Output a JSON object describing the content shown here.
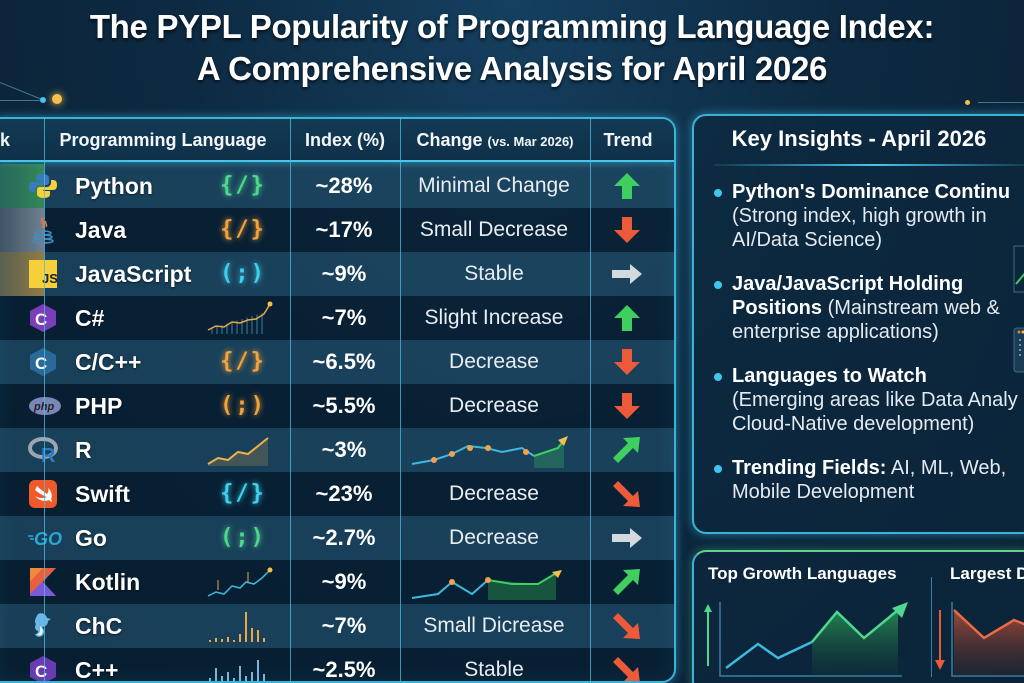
{
  "header": {
    "title_line1": "The PYPL Popularity of Programming Language Index:",
    "title_line2": "A Comprehensive Analysis for April 2026"
  },
  "table": {
    "columns": {
      "rank": "k",
      "language": "Programming Language",
      "index": "Index (%)",
      "change": "Change",
      "change_sub": "(vs. Mar 2026)",
      "trend": "Trend"
    },
    "rows": [
      {
        "language": "Python",
        "icon": "python-logo-icon",
        "glyph": "{/}",
        "glyph_color": "#4fd68f",
        "index": "~28%",
        "change": "Minimal Change",
        "trend": "up",
        "highlight": "#3a9a5a"
      },
      {
        "language": "Java",
        "icon": "java-logo-icon",
        "glyph": "{/}",
        "glyph_color": "#f2a23a",
        "index": "~17%",
        "change": "Small Decrease",
        "trend": "down",
        "highlight": "#8a9aa8"
      },
      {
        "language": "JavaScript",
        "icon": "javascript-logo-icon",
        "glyph": "(;)",
        "glyph_color": "#3fd0ee",
        "index": "~9%",
        "change": "Stable",
        "trend": "right",
        "highlight": "#b08a40"
      },
      {
        "language": "C#",
        "icon": "csharp-logo-icon",
        "glyph": "",
        "glyph_color": "",
        "index": "~7%",
        "change": "Slight Increase",
        "trend": "up"
      },
      {
        "language": "C/C++",
        "icon": "c-logo-icon",
        "glyph": "{/}",
        "glyph_color": "#f2a23a",
        "index": "~6.5%",
        "change": "Decrease",
        "trend": "down"
      },
      {
        "language": "PHP",
        "icon": "php-logo-icon",
        "glyph": "(;)",
        "glyph_color": "#f2a23a",
        "index": "~5.5%",
        "change": "Decrease",
        "trend": "down"
      },
      {
        "language": "R",
        "icon": "r-logo-icon",
        "glyph": "",
        "glyph_color": "",
        "index": "~3%",
        "change": "",
        "trend": "up-right"
      },
      {
        "language": "Swift",
        "icon": "swift-logo-icon",
        "glyph": "{/}",
        "glyph_color": "#3fd0ee",
        "index": "~23%",
        "change": "Decrease",
        "trend": "down-right"
      },
      {
        "language": "Go",
        "icon": "go-logo-icon",
        "glyph": "(;)",
        "glyph_color": "#4fd68f",
        "index": "~2.7%",
        "change": "Decrease",
        "trend": "right"
      },
      {
        "language": "Kotlin",
        "icon": "kotlin-logo-icon",
        "glyph": "",
        "glyph_color": "",
        "index": "~9%",
        "change": "",
        "trend": "up-right"
      },
      {
        "language": "ChC",
        "icon": "chc-logo-icon",
        "glyph": "",
        "glyph_color": "",
        "index": "~7%",
        "change": "Small Dicrease",
        "trend": "down-right"
      },
      {
        "language": "C++",
        "icon": "cpp-logo-icon",
        "glyph": "",
        "glyph_color": "",
        "index": "~2.5%",
        "change": "Stable",
        "trend": "down-right"
      }
    ]
  },
  "insights": {
    "title": "Key Insights - April 2026",
    "items": [
      {
        "bold": "Python's Dominance Continu",
        "line2": "(Strong index, high growth in",
        "line3": "AI/Data Science)"
      },
      {
        "bold": "Java/JavaScript Holding",
        "line2_bold": "Positions",
        "line2": " (Mainstream web &",
        "line3": "enterprise applications)"
      },
      {
        "bold": "Languages to Watch",
        "line2": "(Emerging areas like Data Analy",
        "line3": "Cloud-Native development)"
      },
      {
        "bold": "Trending Fields:",
        "rest": " AI, ML, Web,",
        "line2": "Mobile Development"
      }
    ]
  },
  "growth_panel": {
    "left_title": "Top Growth Languages",
    "right_title": "Largest D"
  },
  "colors": {
    "up": "#3ecf5e",
    "down": "#ec5a3a",
    "neutral": "#d0d6dc",
    "accent": "#3bb3d6"
  },
  "chart_data": {
    "type": "table",
    "title": "The PYPL Popularity of Programming Language Index: A Comprehensive Analysis for April 2026",
    "columns": [
      "Programming Language",
      "Index (%)",
      "Change (vs. Mar 2026)",
      "Trend"
    ],
    "categories": [
      "Python",
      "Java",
      "JavaScript",
      "C#",
      "C/C++",
      "PHP",
      "R",
      "Swift",
      "Go",
      "Kotlin",
      "ChC",
      "C++"
    ],
    "values": [
      28,
      17,
      9,
      7,
      6.5,
      5.5,
      3,
      23,
      2.7,
      9,
      7,
      2.5
    ],
    "change": [
      "Minimal Change",
      "Small Decrease",
      "Stable",
      "Slight Increase",
      "Decrease",
      "Decrease",
      "(sparkline up)",
      "Decrease",
      "Decrease",
      "(sparkline up)",
      "Small Dicrease",
      "Stable"
    ],
    "trend": [
      "up",
      "down",
      "right",
      "up",
      "down",
      "down",
      "up-right",
      "down-right",
      "right",
      "up-right",
      "down-right",
      "down-right"
    ],
    "ylabel": "Index (%)"
  }
}
